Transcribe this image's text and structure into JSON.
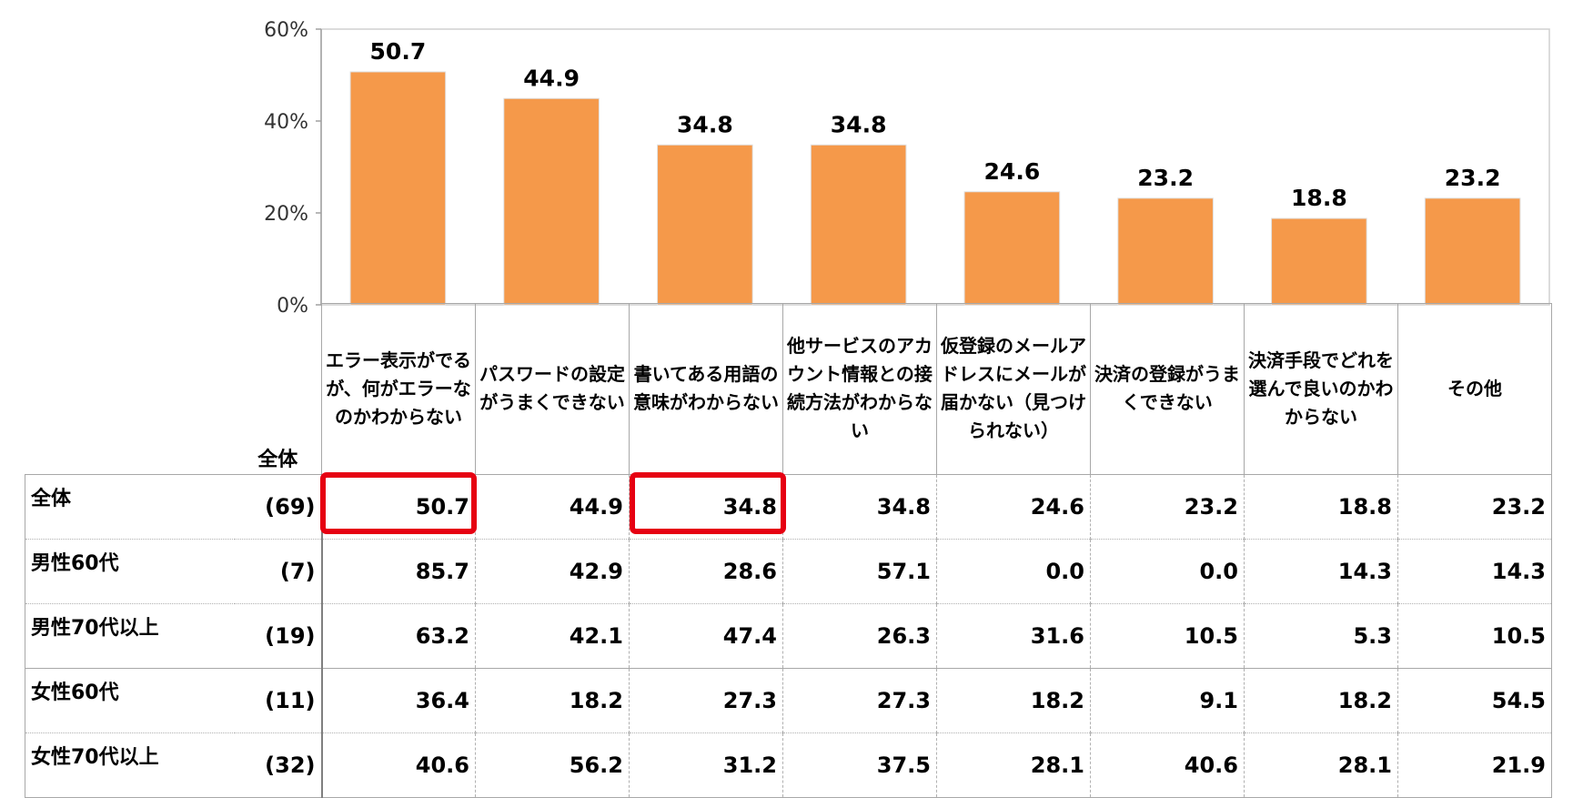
{
  "chart_data": {
    "type": "bar",
    "categories": [
      "エラー表示がでるが、何がエラーなのかわからない",
      "パスワードの設定がうまくできない",
      "書いてある用語の意味がわからない",
      "他サービスのアカウント情報との接続方法がわからない",
      "仮登録のメールアドレスにメールが届かない（見つけられない）",
      "決済の登録がうまくできない",
      "決済手段でどれを選んで良いのかわからない",
      "その他"
    ],
    "values": [
      50.7,
      44.9,
      34.8,
      34.8,
      24.6,
      23.2,
      18.8,
      23.2
    ],
    "data_labels": [
      "50.7",
      "44.9",
      "34.8",
      "34.8",
      "24.6",
      "23.2",
      "18.8",
      "23.2"
    ],
    "ylim": [
      0,
      60
    ],
    "yticks": [
      0,
      20,
      40,
      60
    ],
    "ytick_labels": [
      "0%",
      "20%",
      "40%",
      "60%"
    ],
    "bar_color": "#f5994a",
    "grid": false,
    "title": "",
    "xlabel": "",
    "ylabel": ""
  },
  "table": {
    "total_label": "全体",
    "rows": [
      {
        "label": "全体",
        "n": "(69)",
        "values": [
          "50.7",
          "44.9",
          "34.8",
          "34.8",
          "24.6",
          "23.2",
          "18.8",
          "23.2"
        ]
      },
      {
        "label": "男性60代",
        "n": "(7)",
        "values": [
          "85.7",
          "42.9",
          "28.6",
          "57.1",
          "0.0",
          "0.0",
          "14.3",
          "14.3"
        ]
      },
      {
        "label": "男性70代以上",
        "n": "(19)",
        "values": [
          "63.2",
          "42.1",
          "47.4",
          "26.3",
          "31.6",
          "10.5",
          "5.3",
          "10.5"
        ]
      },
      {
        "label": "女性60代",
        "n": "(11)",
        "values": [
          "36.4",
          "18.2",
          "27.3",
          "27.3",
          "18.2",
          "9.1",
          "18.2",
          "54.5"
        ]
      },
      {
        "label": "女性70代以上",
        "n": "(32)",
        "values": [
          "40.6",
          "56.2",
          "31.2",
          "37.5",
          "28.1",
          "40.6",
          "28.1",
          "21.9"
        ]
      }
    ],
    "highlight_color": "#e60012"
  }
}
